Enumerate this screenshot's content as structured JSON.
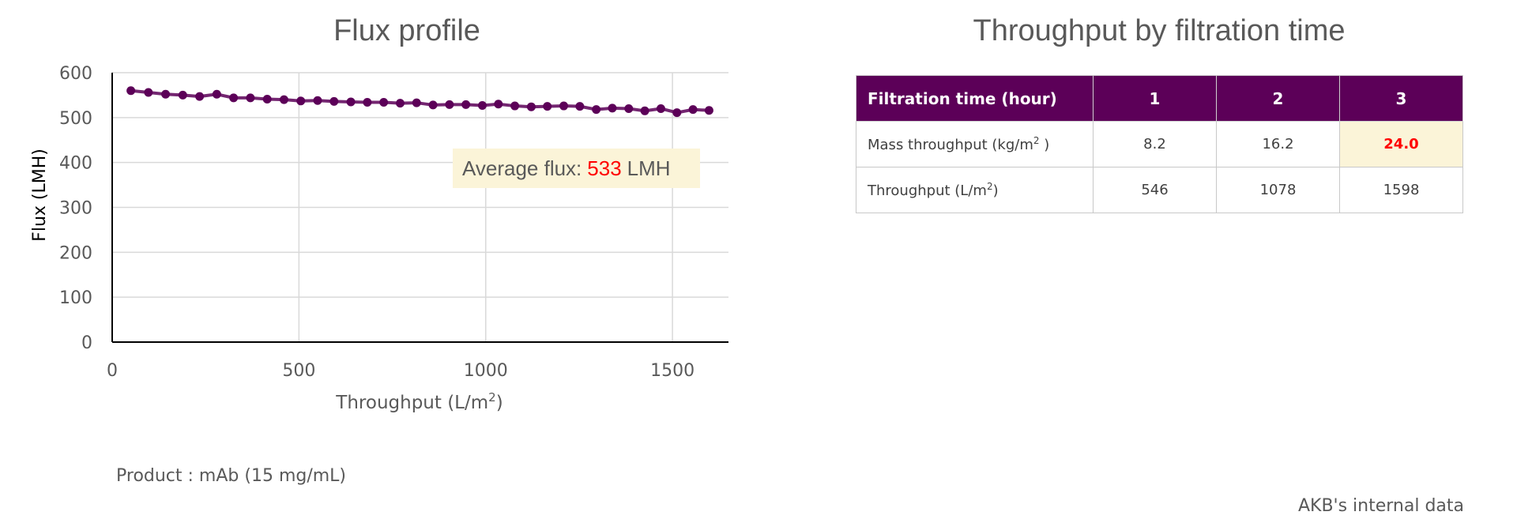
{
  "chart_data": {
    "type": "line",
    "title": "Flux profile",
    "xlabel": "Throughput (L/m",
    "xlabel_sup": "2",
    "xlabel_close": ")",
    "ylabel": "Flux (LMH)",
    "xlim": [
      0,
      1650
    ],
    "ylim": [
      0,
      600
    ],
    "xticks": [
      0,
      500,
      1000,
      1500
    ],
    "yticks": [
      0,
      100,
      200,
      300,
      400,
      500,
      600
    ],
    "grid": true,
    "line_color": "#5c0058",
    "series": [
      {
        "x": [
          50,
          97,
          143,
          189,
          234,
          280,
          325,
          370,
          415,
          460,
          505,
          550,
          594,
          639,
          683,
          727,
          771,
          815,
          859,
          903,
          947,
          991,
          1034,
          1078,
          1122,
          1165,
          1209,
          1252,
          1296,
          1339,
          1383,
          1426,
          1469,
          1512,
          1555,
          1598
        ],
        "y": [
          560,
          556,
          552,
          550,
          547,
          552,
          544,
          544,
          541,
          540,
          537,
          538,
          536,
          535,
          534,
          534,
          532,
          533,
          528,
          529,
          529,
          527,
          530,
          526,
          524,
          525,
          526,
          525,
          518,
          521,
          520,
          515,
          520,
          511,
          518,
          516
        ]
      }
    ],
    "annotation": {
      "label": "Average flux:",
      "value": "533",
      "unit": "LMH"
    }
  },
  "table": {
    "title": "Throughput by filtration time",
    "header_label": "Filtration time (hour)",
    "columns": [
      "1",
      "2",
      "3"
    ],
    "rows": [
      {
        "label": "Mass throughput (kg/m",
        "sup": "2",
        "tail": " )",
        "values": [
          "8.2",
          "16.2",
          "24.0"
        ]
      },
      {
        "label": "Throughput (L/m",
        "sup": "2",
        "tail": ")",
        "values": [
          "546",
          "1078",
          "1598"
        ]
      }
    ]
  },
  "footnotes": {
    "product": "Product : mAb (15 mg/mL)",
    "source": "AKB's internal data"
  },
  "colors": {
    "header_bg": "#5c0058",
    "highlight_bg": "#fbf4d8",
    "highlight_text": "#ff0000",
    "text": "#595959"
  }
}
